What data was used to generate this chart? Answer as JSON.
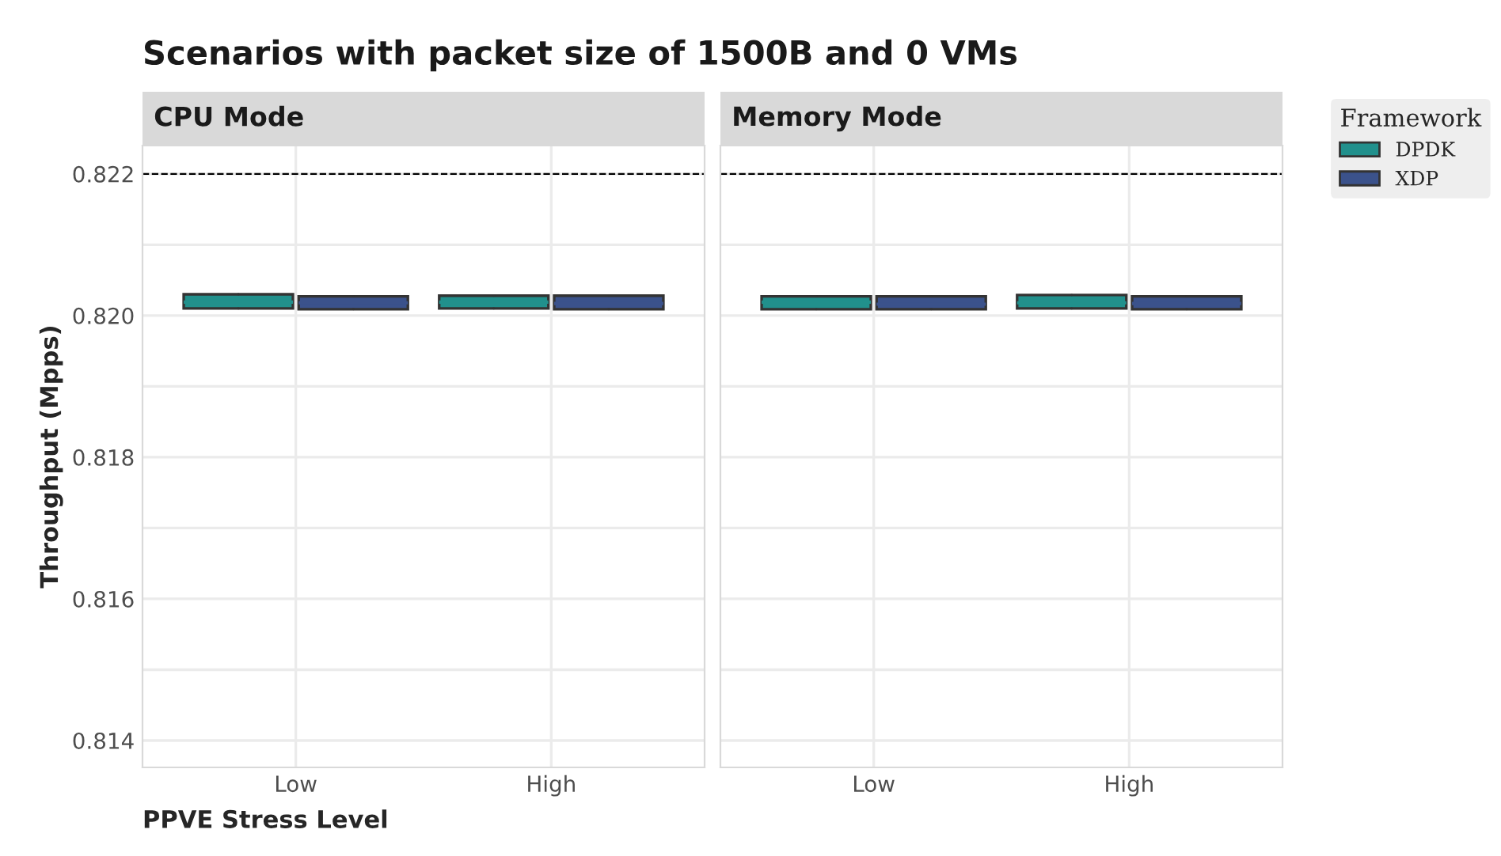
{
  "chart_data": [
    {
      "type": "box",
      "title": "Scenarios with packet size of 1500B and 0 VMs",
      "subtitle": "CPU Mode",
      "xlabel": "PPVE Stress Level",
      "ylabel": "Throughput (Mpps)",
      "categories": [
        "Low",
        "High"
      ],
      "ylim": [
        0.81362,
        0.8224
      ],
      "yticks": [
        {
          "value": 0.814,
          "label": "0.814"
        },
        {
          "value": 0.815,
          "label": null
        },
        {
          "value": 0.816,
          "label": "0.816"
        },
        {
          "value": 0.817,
          "label": null
        },
        {
          "value": 0.818,
          "label": "0.818"
        },
        {
          "value": 0.819,
          "label": null
        },
        {
          "value": 0.82,
          "label": "0.820"
        },
        {
          "value": 0.821,
          "label": null
        },
        {
          "value": 0.822,
          "label": "0.822"
        }
      ],
      "grid": true,
      "legend": "right",
      "legend_title": "Framework",
      "ref_lines": [
        {
          "axis": "y",
          "value": 0.822,
          "line_style": "dashed",
          "color": "#000000"
        }
      ],
      "series": [
        {
          "name": "DPDK",
          "color": "#21908c",
          "boxes": [
            {
              "low": 0.8201,
              "q1": 0.8201,
              "median": 0.82019,
              "q3": 0.8203,
              "high": 0.8203
            },
            {
              "low": 0.8201,
              "q1": 0.8201,
              "median": 0.82019,
              "q3": 0.82028,
              "high": 0.82028
            }
          ]
        },
        {
          "name": "XDP",
          "color": "#3b528b",
          "boxes": [
            {
              "low": 0.82009,
              "q1": 0.82009,
              "median": 0.82018,
              "q3": 0.82027,
              "high": 0.82027
            },
            {
              "low": 0.82009,
              "q1": 0.82009,
              "median": 0.82017,
              "q3": 0.82028,
              "high": 0.82028
            }
          ]
        }
      ]
    },
    {
      "type": "box",
      "subtitle": "Memory Mode",
      "categories": [
        "Low",
        "High"
      ],
      "ylim": [
        0.81362,
        0.8224
      ],
      "yticks": [
        {
          "value": 0.814,
          "label": null
        },
        {
          "value": 0.815,
          "label": null
        },
        {
          "value": 0.816,
          "label": null
        },
        {
          "value": 0.817,
          "label": null
        },
        {
          "value": 0.818,
          "label": null
        },
        {
          "value": 0.819,
          "label": null
        },
        {
          "value": 0.82,
          "label": null
        },
        {
          "value": 0.821,
          "label": null
        },
        {
          "value": 0.822,
          "label": null
        }
      ],
      "grid": true,
      "tick_labels": "x",
      "ref_lines": [
        {
          "axis": "y",
          "value": 0.822,
          "line_style": "dashed",
          "color": "#000000"
        }
      ],
      "series": [
        {
          "color": "#21908c",
          "boxes": [
            {
              "low": 0.82009,
              "q1": 0.82009,
              "median": 0.82019,
              "q3": 0.82027,
              "high": 0.82027
            },
            {
              "low": 0.8201,
              "q1": 0.8201,
              "median": 0.82018,
              "q3": 0.82029,
              "high": 0.82029
            }
          ]
        },
        {
          "color": "#3b528b",
          "boxes": [
            {
              "low": 0.82009,
              "q1": 0.82009,
              "median": 0.82016,
              "q3": 0.82027,
              "high": 0.82027
            },
            {
              "low": 0.82009,
              "q1": 0.82009,
              "median": 0.82017,
              "q3": 0.82027,
              "high": 0.82027
            }
          ]
        }
      ]
    }
  ]
}
